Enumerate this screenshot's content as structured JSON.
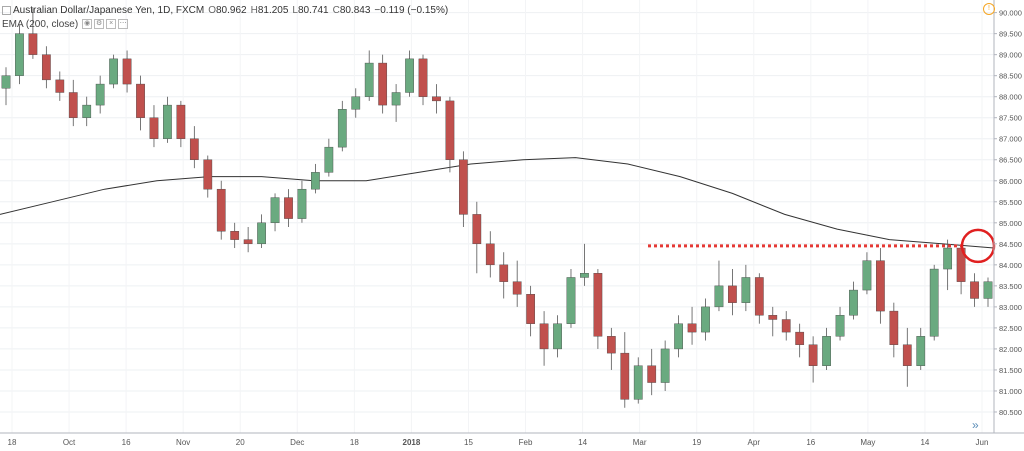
{
  "legend": {
    "symbol": "Australian Dollar/Japanese Yen, 1D, FXCM",
    "open_label": "O",
    "open": "80.962",
    "high_label": "H",
    "high": "81.205",
    "low_label": "L",
    "low": "80.741",
    "close_label": "C",
    "close": "80.843",
    "change": "−0.119 (−0.15%)",
    "indicator": "EMA (200, close)"
  },
  "icons": {
    "clock": "clock-icon",
    "goto_latest": "double-chevron-right-icon"
  },
  "colors": {
    "up": "#6aaa80",
    "down": "#c0504d",
    "ema": "#333333",
    "level": "#e53935",
    "highlight": "#e02020"
  },
  "chart_data": {
    "type": "candlestick",
    "ylim": [
      80.0,
      90.3
    ],
    "y_ticks": [
      "80.500",
      "81.000",
      "81.500",
      "82.000",
      "82.500",
      "83.000",
      "83.500",
      "84.000",
      "84.500",
      "85.000",
      "85.500",
      "86.000",
      "86.500",
      "87.000",
      "87.500",
      "88.000",
      "88.500",
      "89.000",
      "89.500",
      "90.000"
    ],
    "x_ticks": [
      "18",
      "Oct",
      "16",
      "Nov",
      "20",
      "Dec",
      "18",
      "2018",
      "15",
      "Feb",
      "14",
      "Mar",
      "19",
      "Apr",
      "16",
      "May",
      "14",
      "Jun"
    ],
    "ema": [
      85.2,
      85.5,
      85.8,
      86.0,
      86.1,
      86.1,
      86.0,
      86.0,
      86.2,
      86.4,
      86.5,
      86.55,
      86.4,
      86.1,
      85.7,
      85.2,
      84.85,
      84.6,
      84.5,
      84.4
    ],
    "candles": [
      [
        88.2,
        88.7,
        87.8,
        88.5
      ],
      [
        88.5,
        89.7,
        88.3,
        89.5
      ],
      [
        89.5,
        90.1,
        88.9,
        89.0
      ],
      [
        89.0,
        89.2,
        88.2,
        88.4
      ],
      [
        88.4,
        88.6,
        87.9,
        88.1
      ],
      [
        88.1,
        88.4,
        87.3,
        87.5
      ],
      [
        87.5,
        88.0,
        87.3,
        87.8
      ],
      [
        87.8,
        88.5,
        87.6,
        88.3
      ],
      [
        88.3,
        89.0,
        88.2,
        88.9
      ],
      [
        88.9,
        89.1,
        88.1,
        88.3
      ],
      [
        88.3,
        88.5,
        87.2,
        87.5
      ],
      [
        87.5,
        87.8,
        86.8,
        87.0
      ],
      [
        87.0,
        88.0,
        86.9,
        87.8
      ],
      [
        87.8,
        87.9,
        86.8,
        87.0
      ],
      [
        87.0,
        87.3,
        86.3,
        86.5
      ],
      [
        86.5,
        86.6,
        85.6,
        85.8
      ],
      [
        85.8,
        86.0,
        84.6,
        84.8
      ],
      [
        84.8,
        85.0,
        84.4,
        84.6
      ],
      [
        84.6,
        84.9,
        84.3,
        84.5
      ],
      [
        84.5,
        85.2,
        84.4,
        85.0
      ],
      [
        85.0,
        85.7,
        84.8,
        85.6
      ],
      [
        85.6,
        85.8,
        84.9,
        85.1
      ],
      [
        85.1,
        86.0,
        85.0,
        85.8
      ],
      [
        85.8,
        86.4,
        85.7,
        86.2
      ],
      [
        86.2,
        87.0,
        86.1,
        86.8
      ],
      [
        86.8,
        87.9,
        86.7,
        87.7
      ],
      [
        87.7,
        88.2,
        87.5,
        88.0
      ],
      [
        88.0,
        89.1,
        87.9,
        88.8
      ],
      [
        88.8,
        89.0,
        87.6,
        87.8
      ],
      [
        87.8,
        88.3,
        87.4,
        88.1
      ],
      [
        88.1,
        89.1,
        88.0,
        88.9
      ],
      [
        88.9,
        89.0,
        87.8,
        88.0
      ],
      [
        88.0,
        88.3,
        87.6,
        87.9
      ],
      [
        87.9,
        88.0,
        86.2,
        86.5
      ],
      [
        86.5,
        86.7,
        84.9,
        85.2
      ],
      [
        85.2,
        85.5,
        83.8,
        84.5
      ],
      [
        84.5,
        84.8,
        83.7,
        84.0
      ],
      [
        84.0,
        84.3,
        83.2,
        83.6
      ],
      [
        83.6,
        84.1,
        83.0,
        83.3
      ],
      [
        83.3,
        83.5,
        82.3,
        82.6
      ],
      [
        82.6,
        82.9,
        81.6,
        82.0
      ],
      [
        82.0,
        82.8,
        81.8,
        82.6
      ],
      [
        82.6,
        83.9,
        82.5,
        83.7
      ],
      [
        83.7,
        84.5,
        83.5,
        83.8
      ],
      [
        83.8,
        83.9,
        82.0,
        82.3
      ],
      [
        82.3,
        82.5,
        81.5,
        81.9
      ],
      [
        81.9,
        82.4,
        80.6,
        80.8
      ],
      [
        80.8,
        81.8,
        80.7,
        81.6
      ],
      [
        81.6,
        82.0,
        80.9,
        81.2
      ],
      [
        81.2,
        82.2,
        81.0,
        82.0
      ],
      [
        82.0,
        82.8,
        81.8,
        82.6
      ],
      [
        82.6,
        83.0,
        82.1,
        82.4
      ],
      [
        82.4,
        83.2,
        82.2,
        83.0
      ],
      [
        83.0,
        84.1,
        82.9,
        83.5
      ],
      [
        83.5,
        83.9,
        82.8,
        83.1
      ],
      [
        83.1,
        84.0,
        82.9,
        83.7
      ],
      [
        83.7,
        83.8,
        82.6,
        82.8
      ],
      [
        82.8,
        83.0,
        82.3,
        82.7
      ],
      [
        82.7,
        82.9,
        82.2,
        82.4
      ],
      [
        82.4,
        82.6,
        81.8,
        82.1
      ],
      [
        82.1,
        82.3,
        81.2,
        81.6
      ],
      [
        81.6,
        82.5,
        81.5,
        82.3
      ],
      [
        82.3,
        83.0,
        82.2,
        82.8
      ],
      [
        82.8,
        83.6,
        82.7,
        83.4
      ],
      [
        83.4,
        84.3,
        83.3,
        84.1
      ],
      [
        84.1,
        84.4,
        82.6,
        82.9
      ],
      [
        82.9,
        83.1,
        81.8,
        82.1
      ],
      [
        82.1,
        82.5,
        81.1,
        81.6
      ],
      [
        81.6,
        82.5,
        81.5,
        82.3
      ],
      [
        82.3,
        84.0,
        82.2,
        83.9
      ],
      [
        83.9,
        84.6,
        83.4,
        84.4
      ],
      [
        84.4,
        84.5,
        83.3,
        83.6
      ],
      [
        83.6,
        83.8,
        83.0,
        83.2
      ],
      [
        83.2,
        83.7,
        83.0,
        83.6
      ]
    ],
    "resistance_level": 84.45
  }
}
